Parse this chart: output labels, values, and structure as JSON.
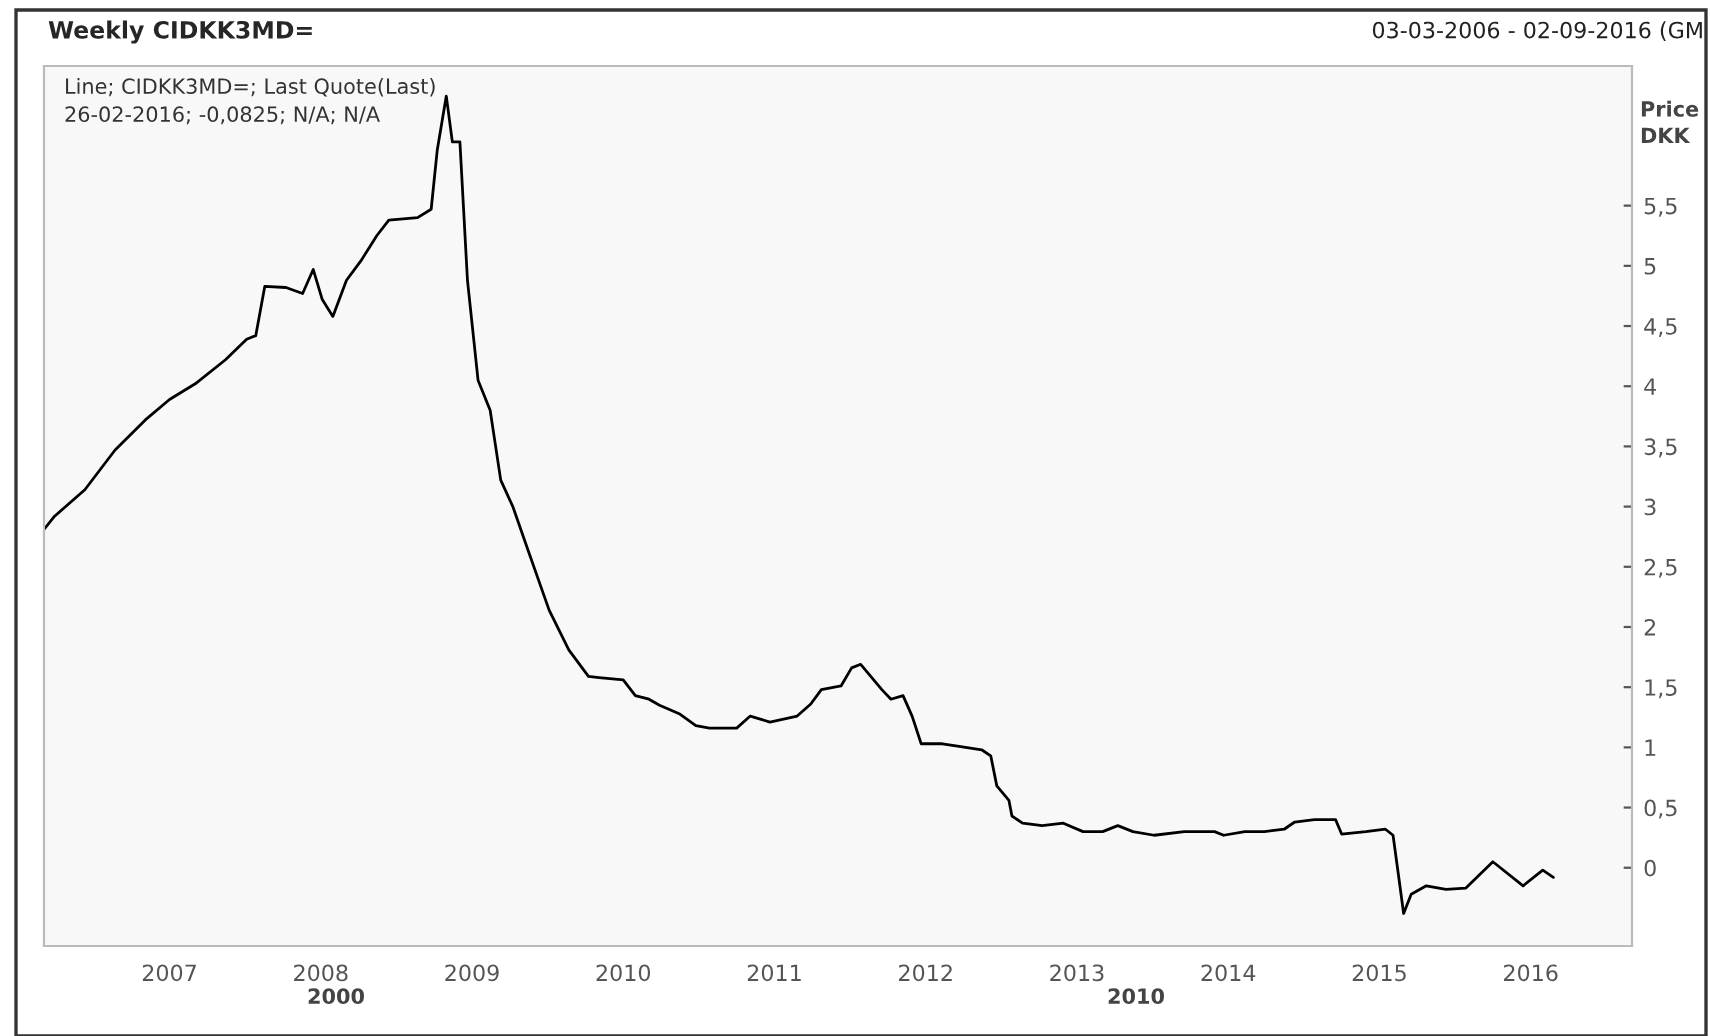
{
  "chart_data": {
    "type": "line",
    "title": "Weekly CIDKK3MD=",
    "subtitle": "03-03-2006 - 02-09-2016 (GM",
    "ylabel": "Price\nDKK",
    "annotations": [
      "Line; CIDKK3MD=; Last Quote(Last)",
      "26-02-2016; -0,0825; N/A; N/A",
      "2000",
      "2010"
    ],
    "series": [
      {
        "color": "#000000",
        "x": [
          2006.17,
          2006.24,
          2006.44,
          2006.64,
          2006.84,
          2007.0,
          2007.17,
          2007.37,
          2007.51,
          2007.57,
          2007.63,
          2007.77,
          2007.88,
          2007.95,
          2008.01,
          2008.08,
          2008.17,
          2008.27,
          2008.37,
          2008.45,
          2008.64,
          2008.73,
          2008.77,
          2008.83,
          2008.87,
          2008.92,
          2008.97,
          2009.04,
          2009.12,
          2009.19,
          2009.27,
          2009.37,
          2009.51,
          2009.64,
          2009.77,
          2009.84,
          2010.0,
          2010.08,
          2010.17,
          2010.24,
          2010.37,
          2010.48,
          2010.57,
          2010.75,
          2010.84,
          2010.97,
          2011.15,
          2011.24,
          2011.31,
          2011.44,
          2011.51,
          2011.57,
          2011.71,
          2011.77,
          2011.85,
          2011.91,
          2011.97,
          2012.11,
          2012.21,
          2012.37,
          2012.43,
          2012.47,
          2012.55,
          2012.57,
          2012.64,
          2012.77,
          2012.91,
          2013.04,
          2013.17,
          2013.27,
          2013.37,
          2013.51,
          2013.71,
          2013.91,
          2013.97,
          2014.11,
          2014.24,
          2014.37,
          2014.44,
          2014.57,
          2014.71,
          2014.75,
          2014.91,
          2015.04,
          2015.09,
          2015.13,
          2015.16,
          2015.21,
          2015.31,
          2015.44,
          2015.57,
          2015.75,
          2015.95,
          2016.08,
          2016.15
        ],
        "values": [
          2.81,
          2.92,
          3.14,
          3.47,
          3.72,
          3.89,
          4.02,
          4.22,
          4.39,
          4.42,
          4.83,
          4.82,
          4.77,
          4.97,
          4.72,
          4.58,
          4.88,
          5.05,
          5.25,
          5.38,
          5.4,
          5.47,
          5.96,
          6.41,
          6.03,
          6.03,
          4.88,
          4.05,
          3.8,
          3.22,
          3.0,
          2.64,
          2.14,
          1.81,
          1.59,
          1.58,
          1.56,
          1.43,
          1.4,
          1.35,
          1.28,
          1.18,
          1.16,
          1.16,
          1.26,
          1.21,
          1.26,
          1.36,
          1.48,
          1.51,
          1.66,
          1.69,
          1.48,
          1.4,
          1.43,
          1.26,
          1.03,
          1.03,
          1.01,
          0.98,
          0.93,
          0.68,
          0.56,
          0.43,
          0.37,
          0.35,
          0.37,
          0.3,
          0.3,
          0.35,
          0.3,
          0.27,
          0.3,
          0.3,
          0.27,
          0.3,
          0.3,
          0.32,
          0.38,
          0.4,
          0.4,
          0.28,
          0.3,
          0.32,
          0.27,
          -0.1,
          -0.38,
          -0.22,
          -0.15,
          -0.18,
          -0.17,
          0.05,
          -0.15,
          -0.02,
          -0.08
        ]
      }
    ],
    "xlim": [
      2006.17,
      2016.67
    ],
    "xticks": [
      2007,
      2008,
      2009,
      2010,
      2011,
      2012,
      2013,
      2014,
      2015,
      2016
    ],
    "ylim": [
      -0.65,
      6.66
    ],
    "yticks": [
      0,
      {
        "value": 0.5,
        "label": "0,5"
      },
      1,
      {
        "value": 1.5,
        "label": "1,5"
      },
      2,
      {
        "value": 2.5,
        "label": "2,5"
      },
      3,
      {
        "value": 3.5,
        "label": "3,5"
      },
      4,
      {
        "value": 4.5,
        "label": "4,5"
      },
      5,
      {
        "value": 5.5,
        "label": "5,5"
      }
    ],
    "grid": false,
    "legend": false,
    "line_style": "solid",
    "marker": "none"
  }
}
